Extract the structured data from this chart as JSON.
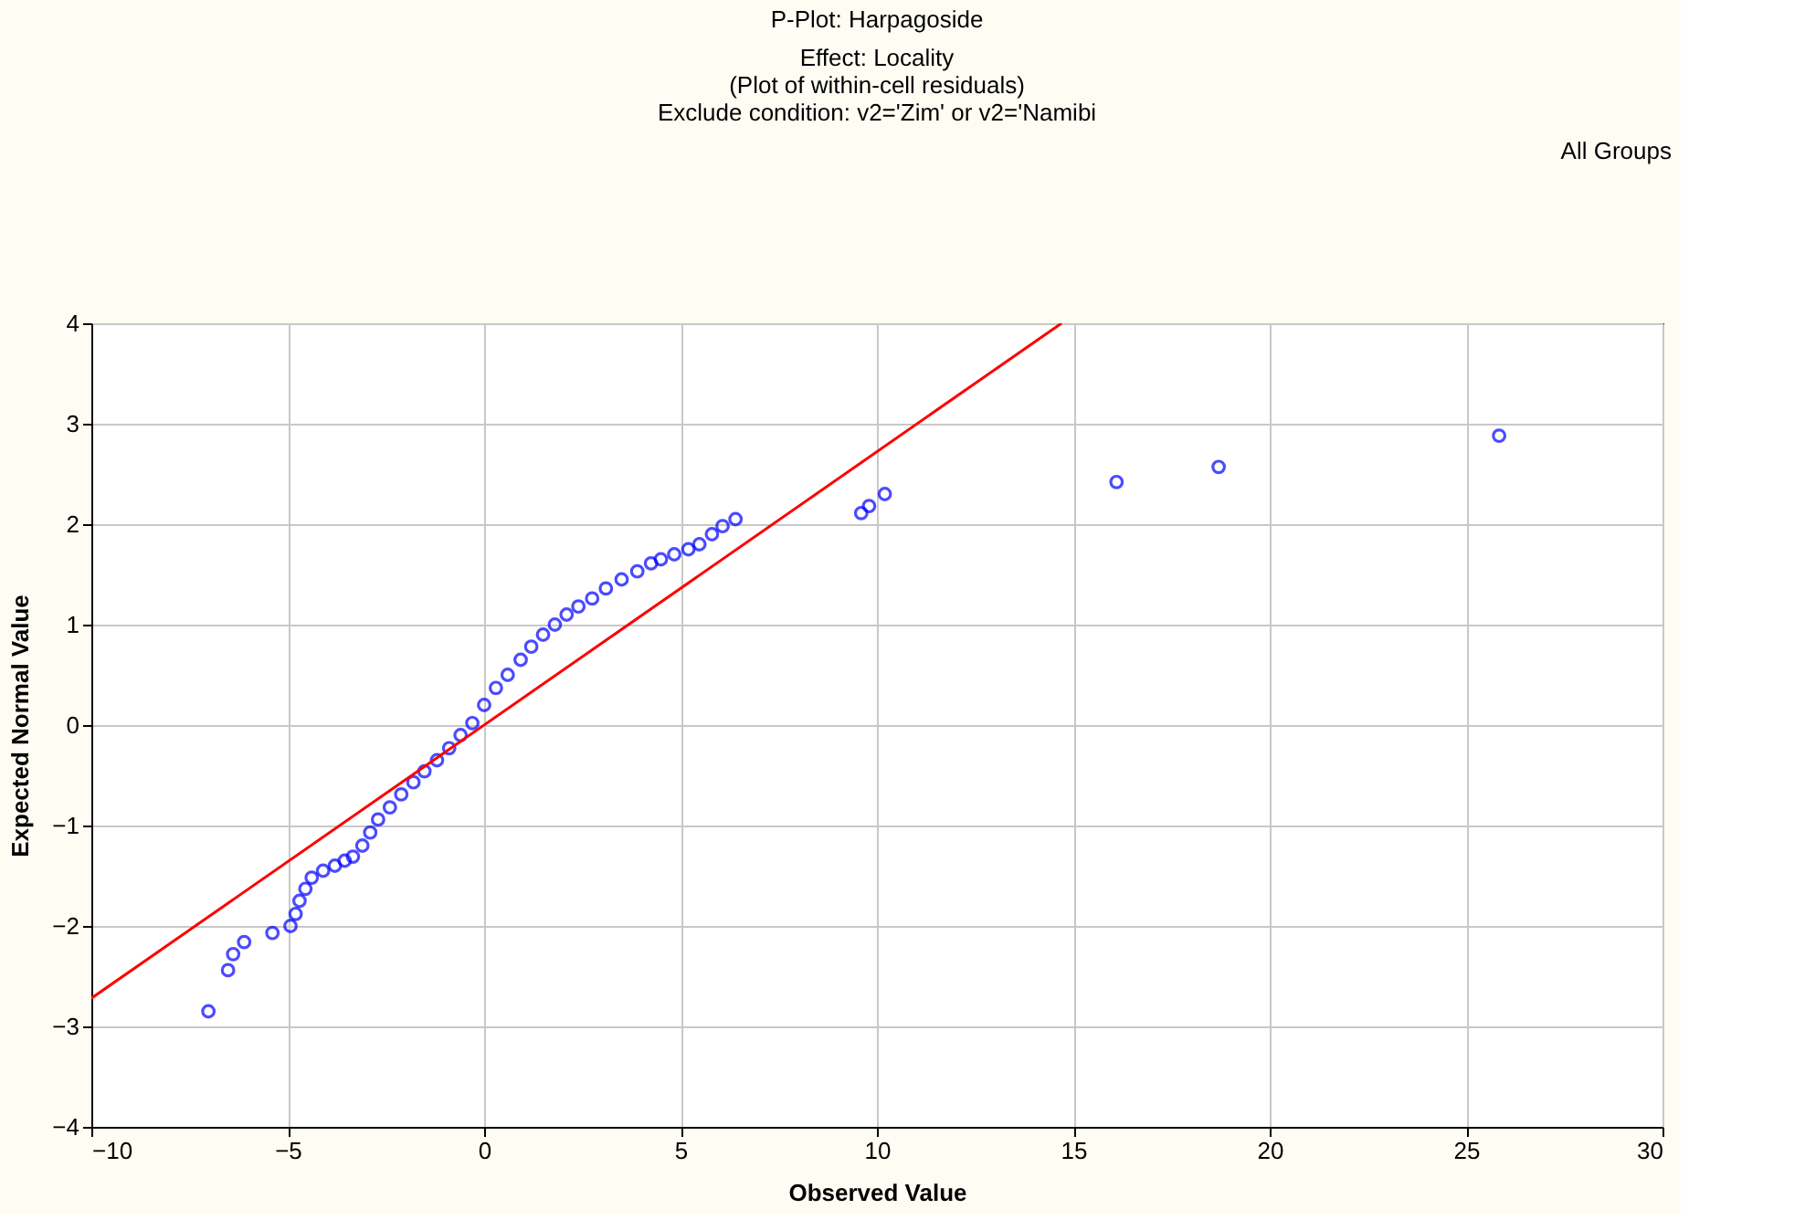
{
  "chart_data": {
    "type": "scatter",
    "title": "P-Plot: Harpagoside",
    "subtitle": "Effect: Locality\n(Plot of within-cell residuals)\nExclude condition: v2='Zim' or v2='Namibi",
    "xlabel": "Observed Value",
    "ylabel": "Expected Normal Value",
    "annotations": [
      "All Groups"
    ],
    "xlim": [
      -10,
      30
    ],
    "xticks": [
      -10,
      -5,
      0,
      5,
      10,
      15,
      20,
      25,
      30
    ],
    "ylim": [
      -4,
      4
    ],
    "yticks": [
      -4,
      -3,
      -2,
      -1,
      0,
      1,
      2,
      3,
      4
    ],
    "grid": true,
    "series": [
      {
        "marker": "circle",
        "color": "#0000ff",
        "x": [
          -7.02,
          -6.52,
          -6.39,
          -6.11,
          -5.39,
          -4.93,
          -4.8,
          -4.7,
          -4.55,
          -4.39,
          -4.1,
          -3.8,
          -3.55,
          -3.34,
          -3.1,
          -2.9,
          -2.7,
          -2.4,
          -2.11,
          -1.8,
          -1.52,
          -1.2,
          -0.89,
          -0.6,
          -0.3,
          0.0,
          0.3,
          0.6,
          0.93,
          1.2,
          1.5,
          1.8,
          2.1,
          2.4,
          2.75,
          3.1,
          3.5,
          3.9,
          4.25,
          4.5,
          4.84,
          5.2,
          5.48,
          5.8,
          6.07,
          6.4,
          9.6,
          9.8,
          10.2,
          16.1,
          18.7,
          25.84
        ],
        "values": [
          -2.85,
          -2.44,
          -2.28,
          -2.16,
          -2.07,
          -2.0,
          -1.88,
          -1.75,
          -1.63,
          -1.52,
          -1.45,
          -1.4,
          -1.35,
          -1.31,
          -1.2,
          -1.07,
          -0.94,
          -0.82,
          -0.69,
          -0.57,
          -0.46,
          -0.35,
          -0.23,
          -0.1,
          0.02,
          0.2,
          0.37,
          0.5,
          0.65,
          0.78,
          0.9,
          1.0,
          1.1,
          1.18,
          1.26,
          1.36,
          1.45,
          1.53,
          1.61,
          1.65,
          1.7,
          1.75,
          1.8,
          1.9,
          1.98,
          2.05,
          2.11,
          2.18,
          2.3,
          2.42,
          2.57,
          2.88
        ]
      },
      {
        "type": "line",
        "color": "#ff0000",
        "x": [
          -10,
          14.7
        ],
        "values": [
          -2.72,
          4.0
        ]
      }
    ]
  }
}
